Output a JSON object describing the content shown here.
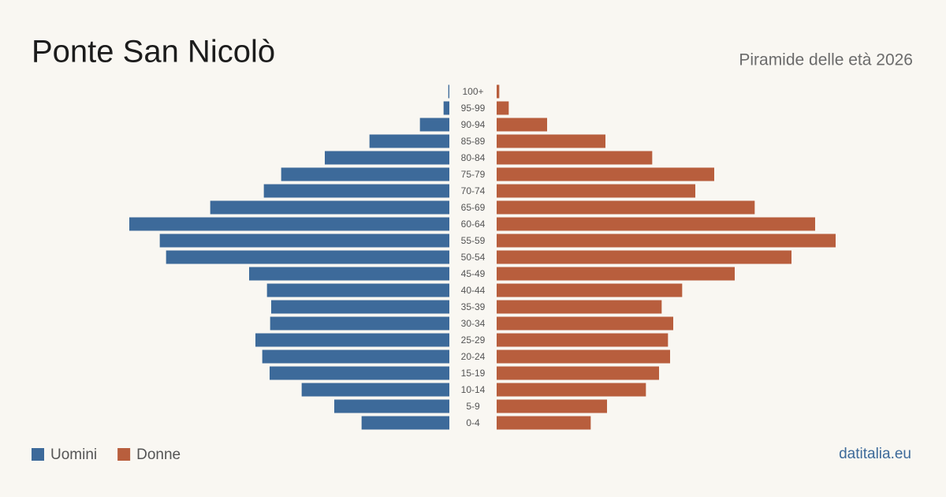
{
  "chart_data": {
    "type": "pyramid",
    "title": "Ponte San Nicolò",
    "subtitle": "Piramide delle età 2026",
    "source": "datitalia.eu",
    "categories": [
      "100+",
      "95-99",
      "90-94",
      "85-89",
      "80-84",
      "75-79",
      "70-74",
      "65-69",
      "60-64",
      "55-59",
      "50-54",
      "45-49",
      "40-44",
      "35-39",
      "30-34",
      "25-29",
      "20-24",
      "15-19",
      "10-14",
      "5-9",
      "0-4"
    ],
    "series": [
      {
        "name": "Uomini",
        "color": "#3d6a9a",
        "values": [
          2,
          11,
          56,
          152,
          237,
          320,
          353,
          455,
          609,
          551,
          539,
          381,
          347,
          339,
          341,
          369,
          356,
          342,
          281,
          219,
          167
        ]
      },
      {
        "name": "Donne",
        "color": "#b85e3d",
        "values": [
          5,
          23,
          96,
          207,
          296,
          414,
          378,
          491,
          606,
          645,
          561,
          453,
          353,
          314,
          336,
          326,
          330,
          309,
          284,
          210,
          179
        ]
      }
    ]
  }
}
